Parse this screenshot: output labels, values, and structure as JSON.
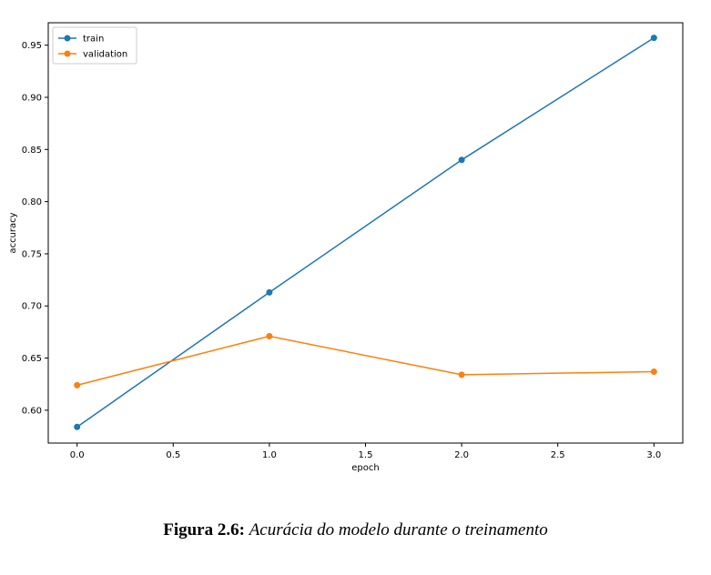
{
  "chart_data": {
    "type": "line",
    "xlabel": "epoch",
    "ylabel": "accuracy",
    "xlim": [
      -0.15,
      3.15
    ],
    "ylim": [
      0.5685,
      0.9715
    ],
    "xticks": [
      0.0,
      0.5,
      1.0,
      1.5,
      2.0,
      2.5,
      3.0
    ],
    "xtick_labels": [
      "0.0",
      "0.5",
      "1.0",
      "1.5",
      "2.0",
      "2.5",
      "3.0"
    ],
    "yticks": [
      0.6,
      0.65,
      0.7,
      0.75,
      0.8,
      0.85,
      0.9,
      0.95
    ],
    "ytick_labels": [
      "0.60",
      "0.65",
      "0.70",
      "0.75",
      "0.80",
      "0.85",
      "0.90",
      "0.95"
    ],
    "x": [
      0,
      1,
      2,
      3
    ],
    "series": [
      {
        "name": "train",
        "values": [
          0.584,
          0.713,
          0.84,
          0.957
        ],
        "color": "#1f77b4",
        "marker": "circle"
      },
      {
        "name": "validation",
        "values": [
          0.624,
          0.671,
          0.634,
          0.637
        ],
        "color": "#ff7f0e",
        "marker": "circle"
      }
    ],
    "legend": "upper-left",
    "grid": false
  },
  "caption": {
    "label": "Figura 2.6:",
    "text": "Acurácia do modelo durante o treinamento"
  }
}
